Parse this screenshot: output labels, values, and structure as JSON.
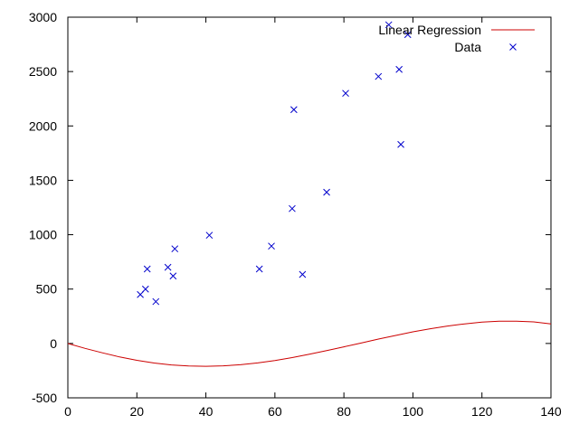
{
  "chart_data": {
    "type": "scatter",
    "title": "",
    "xlabel": "",
    "ylabel": "",
    "xlim": [
      0,
      140
    ],
    "ylim": [
      -500,
      3000
    ],
    "x_ticks": [
      "0",
      "20",
      "40",
      "60",
      "80",
      "100",
      "120",
      "140"
    ],
    "x_tick_values": [
      0,
      20,
      40,
      60,
      80,
      100,
      120,
      140
    ],
    "y_ticks": [
      "-500",
      "0",
      "500",
      "1000",
      "1500",
      "2000",
      "2500",
      "3000"
    ],
    "y_tick_values": [
      -500,
      0,
      500,
      1000,
      1500,
      2000,
      2500,
      3000
    ],
    "grid": false,
    "legend_position": "top-right",
    "series": [
      {
        "name": "Linear Regression",
        "kind": "line",
        "color": "#cc0000",
        "x": [
          0,
          5,
          10,
          15,
          20,
          25,
          30,
          35,
          40,
          45,
          50,
          55,
          60,
          65,
          70,
          75,
          80,
          85,
          90,
          95,
          100,
          105,
          110,
          115,
          120,
          125,
          130,
          135,
          140
        ],
        "y": [
          0,
          -45,
          -86,
          -124,
          -155,
          -180,
          -197,
          -207,
          -210,
          -206,
          -196,
          -179,
          -157,
          -130,
          -99,
          -66,
          -31,
          4,
          40,
          74,
          107,
          135,
          160,
          180,
          196,
          204,
          205,
          198,
          180
        ]
      },
      {
        "name": "Data",
        "kind": "scatter",
        "marker": "x",
        "color": "#0000cc",
        "x": [
          21,
          22.5,
          23,
          25.5,
          29,
          30.5,
          31,
          41,
          55.5,
          59,
          65,
          65.5,
          68,
          75,
          80.5,
          90,
          93,
          96,
          96.5,
          98.5
        ],
        "y": [
          450,
          500,
          685,
          385,
          700,
          620,
          870,
          995,
          685,
          895,
          1240,
          2150,
          635,
          1390,
          2300,
          2455,
          2930,
          2520,
          1830,
          2840
        ]
      }
    ]
  }
}
